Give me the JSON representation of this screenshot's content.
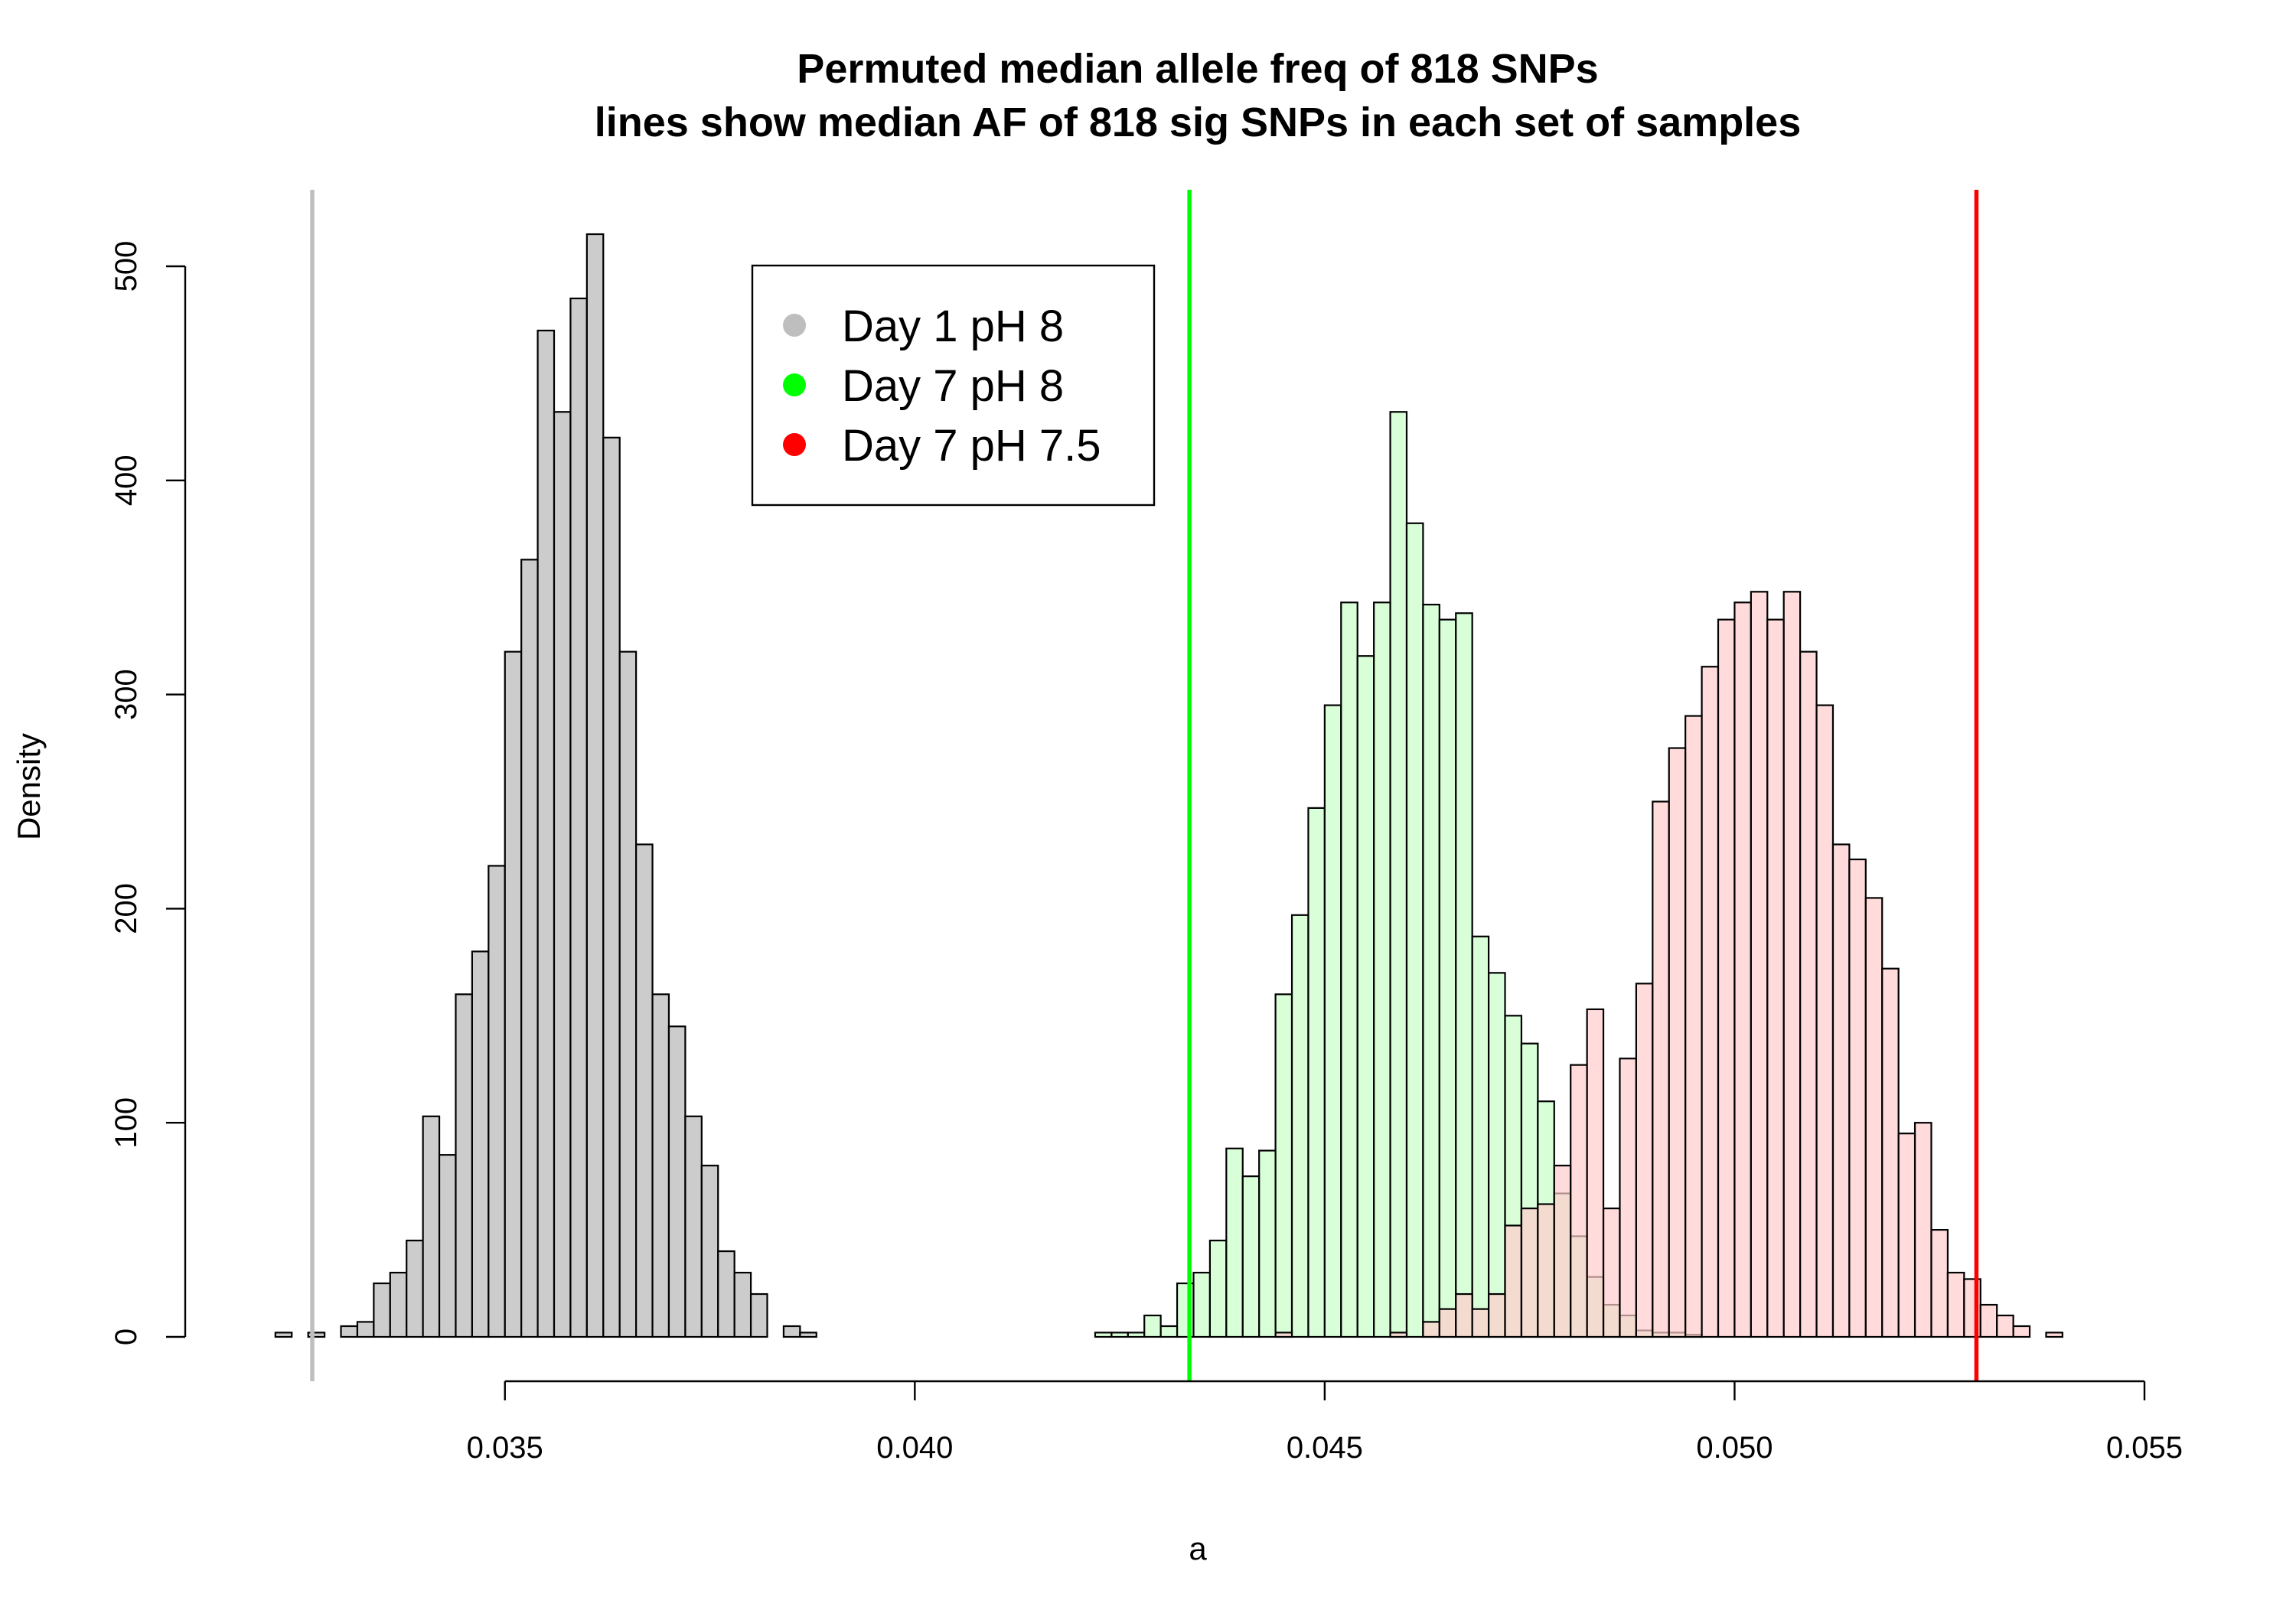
{
  "chart_data": {
    "type": "histogram",
    "title": "Permuted median allele freq of 818 SNPs",
    "subtitle": "lines show median AF of 818 sig SNPs in each set of samples",
    "xlabel": "a",
    "ylabel": "Density",
    "xlim": [
      0.0311,
      0.055
    ],
    "ylim": [
      0,
      500
    ],
    "x_ticks": [
      {
        "value": 0.035,
        "label": "0.035"
      },
      {
        "value": 0.04,
        "label": "0.040"
      },
      {
        "value": 0.045,
        "label": "0.045"
      },
      {
        "value": 0.05,
        "label": "0.050"
      },
      {
        "value": 0.055,
        "label": "0.055"
      }
    ],
    "y_ticks": [
      {
        "value": 0,
        "label": "0"
      },
      {
        "value": 100,
        "label": "100"
      },
      {
        "value": 200,
        "label": "200"
      },
      {
        "value": 300,
        "label": "300"
      },
      {
        "value": 400,
        "label": "400"
      },
      {
        "value": 500,
        "label": "500"
      }
    ],
    "bin_width": 0.0002,
    "legend": {
      "placement": "top-center",
      "entries": [
        {
          "label": "Day 1 pH 8",
          "color": "#bebebe"
        },
        {
          "label": "Day 7 pH 8",
          "color": "#00ff00"
        },
        {
          "label": "Day 7 pH 7.5",
          "color": "#ff0000"
        }
      ]
    },
    "series": [
      {
        "name": "Day 1 pH 8",
        "fill": "#cccccc",
        "bin_start": 0.0322,
        "densities": [
          2,
          0,
          2,
          0,
          5,
          7,
          25,
          30,
          45,
          103,
          85,
          160,
          180,
          220,
          320,
          363,
          470,
          432,
          485,
          515,
          420,
          320,
          230,
          160,
          145,
          103,
          80,
          40,
          30,
          20,
          0,
          5,
          2
        ]
      },
      {
        "name": "Day 7 pH 8",
        "fill": "#c9ffc9",
        "bin_start": 0.0422,
        "densities": [
          2,
          2,
          2,
          10,
          5,
          25,
          30,
          45,
          88,
          75,
          87,
          160,
          197,
          247,
          295,
          343,
          318,
          343,
          432,
          380,
          342,
          335,
          338,
          187,
          170,
          150,
          137,
          110,
          67,
          47,
          28,
          15,
          10,
          3,
          2,
          2,
          1
        ]
      },
      {
        "name": "Day 7 pH 7.5",
        "fill": "#ffcccc",
        "bin_start": 0.0444,
        "densities": [
          2,
          0,
          0,
          0,
          0,
          0,
          0,
          2,
          0,
          7,
          13,
          20,
          13,
          20,
          52,
          60,
          62,
          80,
          127,
          153,
          60,
          130,
          165,
          250,
          275,
          290,
          313,
          335,
          343,
          348,
          335,
          348,
          320,
          295,
          230,
          223,
          205,
          172,
          95,
          100,
          50,
          30,
          27,
          15,
          10,
          5,
          0,
          2
        ]
      }
    ],
    "reference_lines": [
      {
        "name": "Day 1 pH 8",
        "x": 0.03265,
        "color": "#bebebe"
      },
      {
        "name": "Day 7 pH 8",
        "x": 0.04335,
        "color": "#00ff00"
      },
      {
        "name": "Day 7 pH 7.5",
        "x": 0.05295,
        "color": "#ff0000"
      }
    ]
  }
}
